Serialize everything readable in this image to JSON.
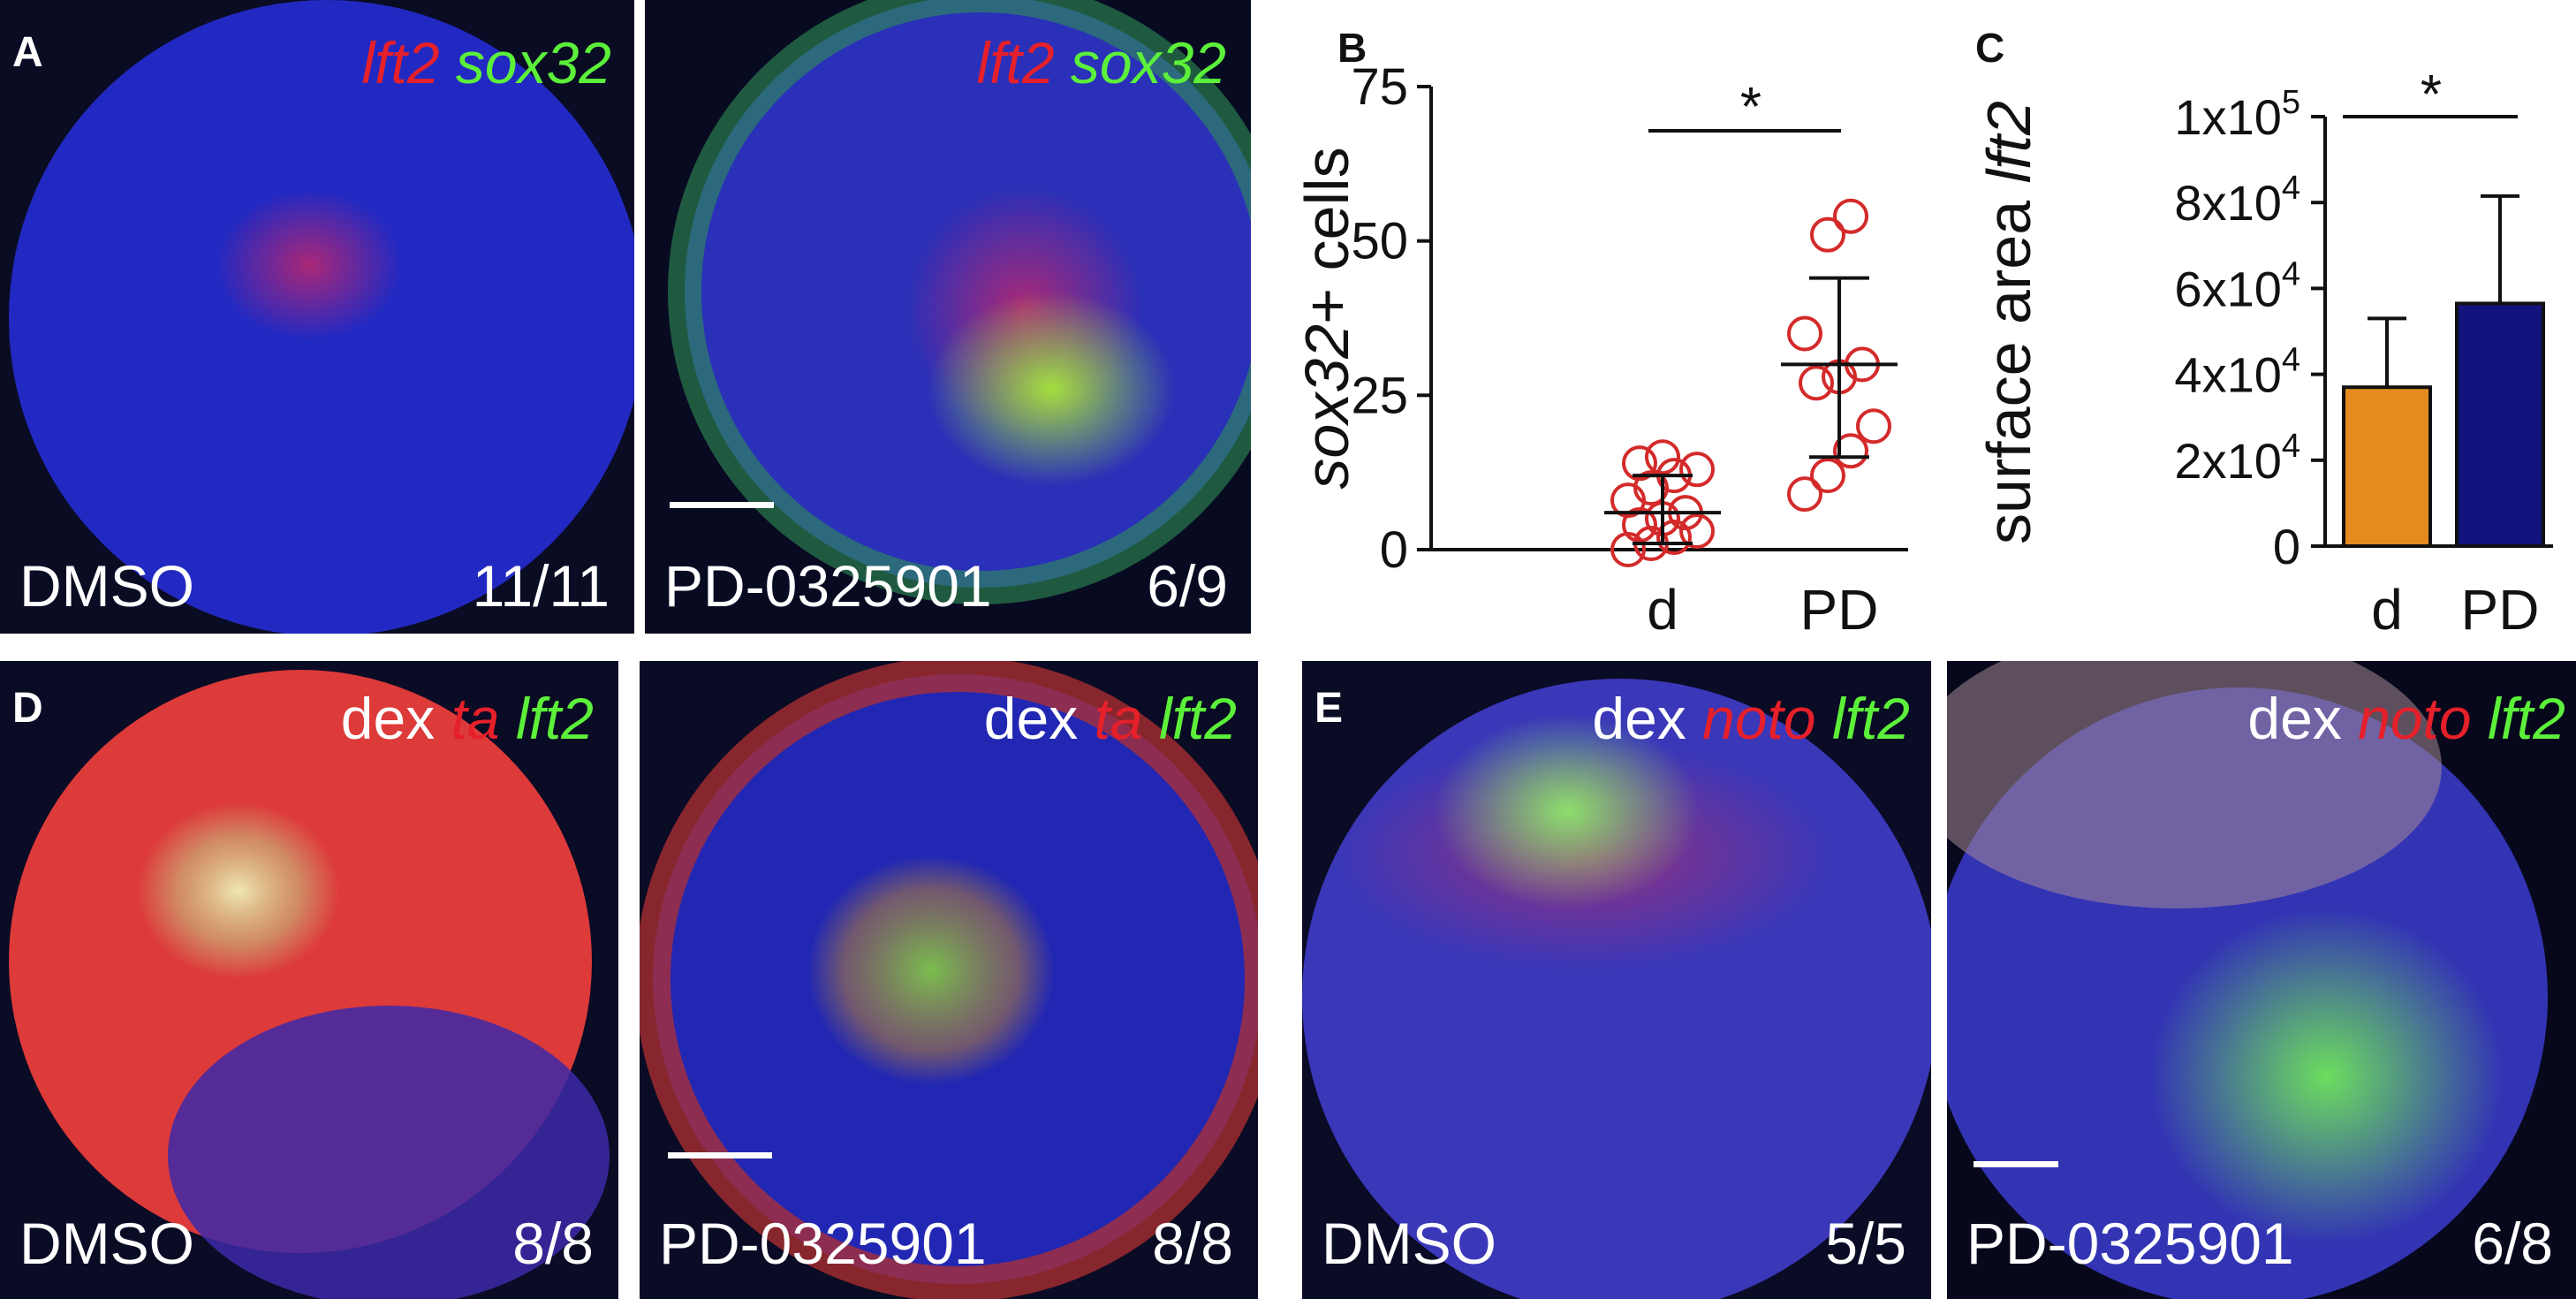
{
  "panels": {
    "A1": {
      "letter": "A",
      "probe1": "lft2",
      "probe2": "sox32",
      "condition": "DMSO",
      "count": "11/11"
    },
    "A2": {
      "probe1": "lft2",
      "probe2": "sox32",
      "condition": "PD-0325901",
      "count": "6/9"
    },
    "D1": {
      "letter": "D",
      "prefix": "dex",
      "probe1": "ta",
      "probe2": "lft2",
      "condition": "DMSO",
      "count": "8/8"
    },
    "D2": {
      "prefix": "dex",
      "probe1": "ta",
      "probe2": "lft2",
      "condition": "PD-0325901",
      "count": "8/8"
    },
    "E1": {
      "letter": "E",
      "prefix": "dex",
      "probe1": "noto",
      "probe2": "lft2",
      "condition": "DMSO",
      "count": "5/5"
    },
    "E2": {
      "prefix": "dex",
      "probe1": "noto",
      "probe2": "lft2",
      "condition": "PD-0325901",
      "count": "6/8"
    }
  },
  "chart_data": [
    {
      "letter": "B",
      "type": "scatter",
      "ylabel_italic": "sox32",
      "ylabel_rest": "+ cells",
      "categories": [
        "d",
        "PD"
      ],
      "ylim": [
        0,
        75
      ],
      "yticks": [
        0,
        25,
        50,
        75
      ],
      "significance": "*",
      "marker_color": "#d42a2a",
      "series": [
        {
          "category": "d",
          "points": [
            0,
            1,
            2,
            3,
            4,
            5,
            6,
            8,
            10,
            12,
            13,
            14,
            15
          ],
          "mean": 6,
          "sd_low": 1,
          "sd_high": 12
        },
        {
          "category": "PD",
          "points": [
            9,
            12,
            16,
            20,
            27,
            28,
            30,
            35,
            51,
            54
          ],
          "mean": 30,
          "sd_low": 15,
          "sd_high": 44
        }
      ]
    },
    {
      "letter": "C",
      "type": "bar",
      "ylabel": "surface area ",
      "ylabel_italic": "lft2",
      "categories": [
        "d",
        "PD"
      ],
      "values": [
        37000,
        56500
      ],
      "error_high": [
        53000,
        81500
      ],
      "ylim": [
        0,
        100000
      ],
      "yticks": [
        0,
        20000,
        40000,
        60000,
        80000,
        100000
      ],
      "ytick_labels": [
        {
          "base": "0",
          "exp": ""
        },
        {
          "base": "2x10",
          "exp": "4"
        },
        {
          "base": "4x10",
          "exp": "4"
        },
        {
          "base": "6x10",
          "exp": "4"
        },
        {
          "base": "8x10",
          "exp": "4"
        },
        {
          "base": "1x10",
          "exp": "5"
        }
      ],
      "significance": "*",
      "colors": [
        "#e58a1f",
        "#13137e"
      ]
    }
  ]
}
